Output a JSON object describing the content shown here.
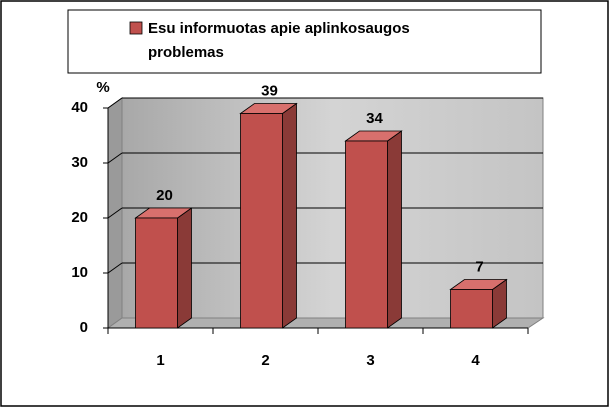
{
  "chart_data": {
    "type": "bar",
    "categories": [
      "1",
      "2",
      "3",
      "4"
    ],
    "series": [
      {
        "name": "Esu informuotas apie aplinkosaugos problemas",
        "color": "#c0504d",
        "values": [
          20,
          39,
          34,
          7
        ]
      }
    ],
    "y_axis_label": "%",
    "ylim": [
      0,
      40
    ],
    "yticks": [
      0,
      10,
      20,
      30,
      40
    ],
    "grid": true
  }
}
